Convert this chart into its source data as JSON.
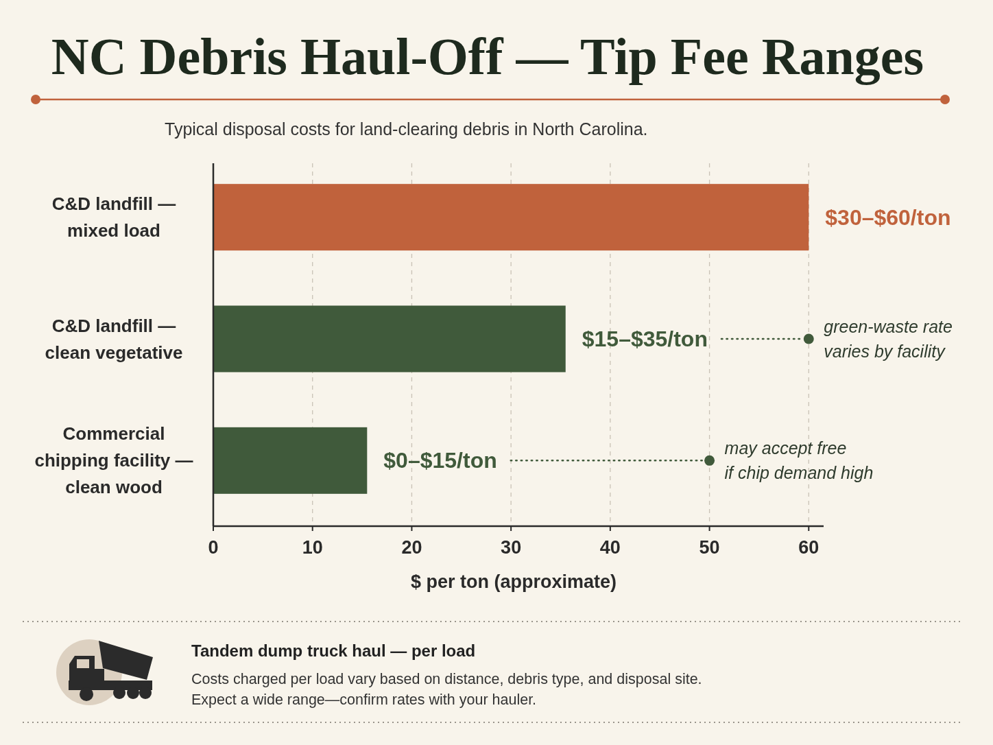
{
  "chart_data": {
    "type": "bar",
    "orientation": "horizontal",
    "title": "NC Debris Haul-Off — Tip Fee Ranges",
    "subtitle": "Typical disposal costs for land-clearing debris in North Carolina.",
    "xlabel": "$ per ton (approximate)",
    "categories": [
      "C&D landfill —\nmixed load",
      "C&D landfill —\nclean vegetative",
      "Commercial\nchipping facility —\nclean wood"
    ],
    "values": [
      60,
      35.5,
      15.5
    ],
    "colors": [
      "#c0623c",
      "#405a3b",
      "#405a3b"
    ],
    "value_labels": [
      "$30–$60/ton",
      "$15–$35/ton",
      "$0–$15/ton"
    ],
    "xlim": [
      0,
      61.5
    ],
    "xticks": [
      0,
      10,
      20,
      30,
      40,
      50,
      60
    ],
    "grid": "x",
    "annotations": [
      {
        "text": "green-waste rate\nvaries by facility",
        "x": 60,
        "y": "C&D landfill —\nclean vegetative"
      },
      {
        "text": "may accept free\nif chip demand high",
        "x": 50,
        "y": "Commercial\nchipping facility —\nclean wood"
      },
      "Tandem dump truck haul — per load",
      "Costs charged per load vary based on distance, debris type, and disposal site.\nExpect a wide range—confirm rates with your hauler."
    ]
  }
}
